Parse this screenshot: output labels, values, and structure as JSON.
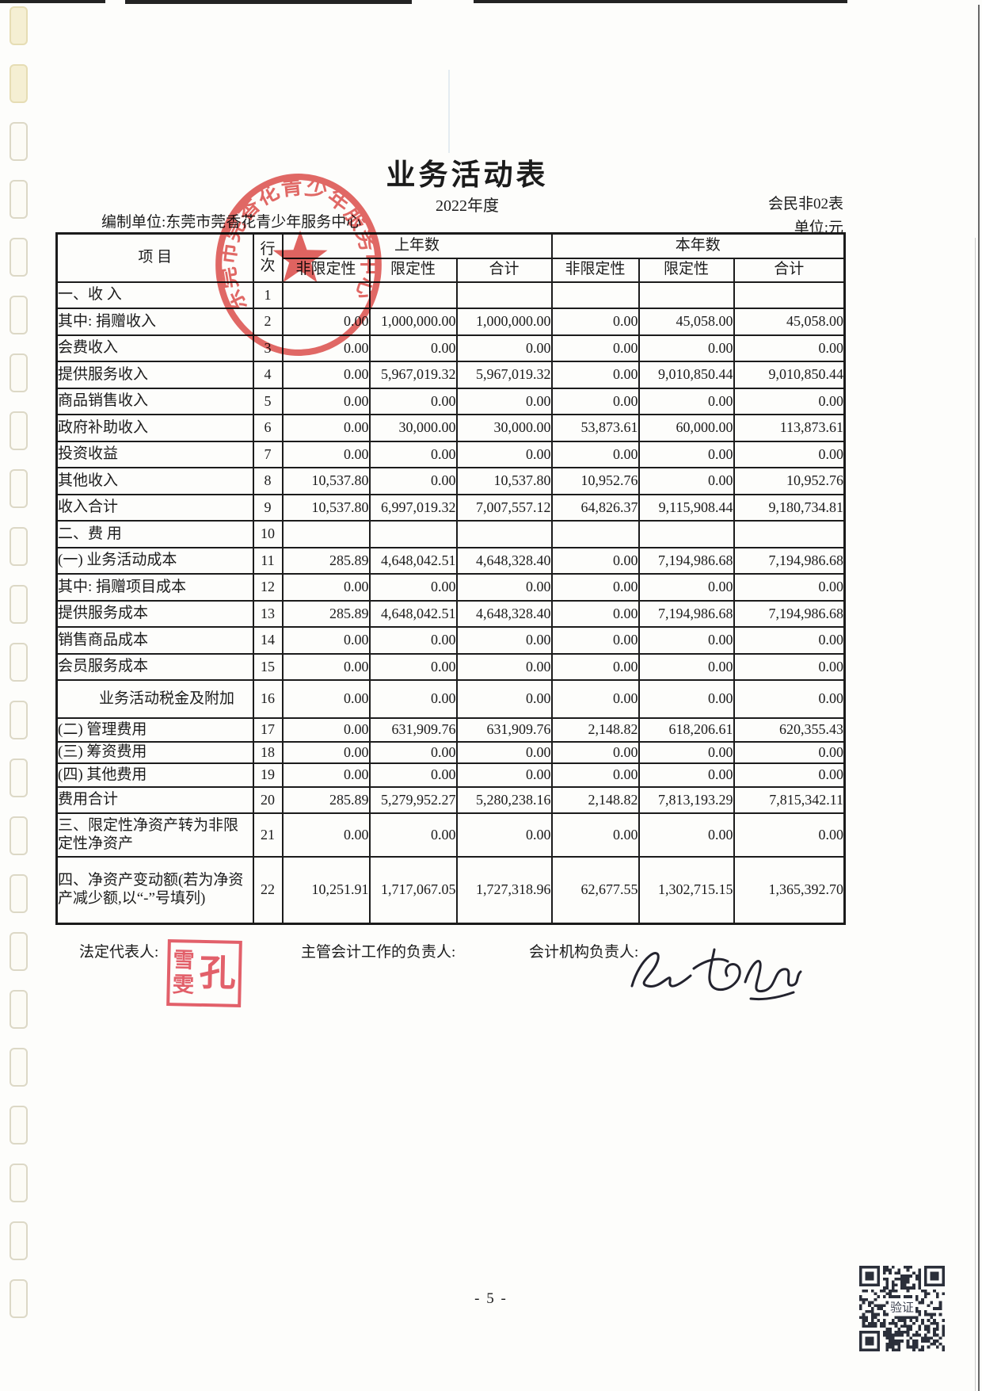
{
  "page": {
    "title": "业务活动表",
    "year": "2022年度",
    "form_code": "会民非02表",
    "unit_label": "单位:元",
    "prepared_by": "编制单位:东莞市莞香花青少年服务中心",
    "page_number": "- 5 -"
  },
  "stamp": {
    "circular_text": "东莞市莞香花青少年服务中心",
    "color": "#dd4f4b"
  },
  "table": {
    "headers": {
      "item": "项  目",
      "line_no": [
        "行",
        "次"
      ],
      "prev_year": "上年数",
      "curr_year": "本年数",
      "sub": [
        "非限定性",
        "限定性",
        "合计",
        "非限定性",
        "限定性",
        "合计"
      ]
    },
    "rows": [
      {
        "item": "一、收 入",
        "no": "1",
        "cls": "lvl0",
        "vals": [
          "",
          "",
          "",
          "",
          "",
          ""
        ]
      },
      {
        "item": "其中: 捐赠收入",
        "no": "2",
        "cls": "lvl0",
        "vals": [
          "0.00",
          "1,000,000.00",
          "1,000,000.00",
          "0.00",
          "45,058.00",
          "45,058.00"
        ]
      },
      {
        "item": "会费收入",
        "no": "3",
        "cls": "lvl1",
        "vals": [
          "0.00",
          "0.00",
          "0.00",
          "0.00",
          "0.00",
          "0.00"
        ]
      },
      {
        "item": "提供服务收入",
        "no": "4",
        "cls": "lvl1",
        "vals": [
          "0.00",
          "5,967,019.32",
          "5,967,019.32",
          "0.00",
          "9,010,850.44",
          "9,010,850.44"
        ]
      },
      {
        "item": "商品销售收入",
        "no": "5",
        "cls": "lvl1",
        "vals": [
          "0.00",
          "0.00",
          "0.00",
          "0.00",
          "0.00",
          "0.00"
        ]
      },
      {
        "item": "政府补助收入",
        "no": "6",
        "cls": "lvl1",
        "vals": [
          "0.00",
          "30,000.00",
          "30,000.00",
          "53,873.61",
          "60,000.00",
          "113,873.61"
        ]
      },
      {
        "item": "投资收益",
        "no": "7",
        "cls": "lvl1",
        "vals": [
          "0.00",
          "0.00",
          "0.00",
          "0.00",
          "0.00",
          "0.00"
        ]
      },
      {
        "item": "其他收入",
        "no": "8",
        "cls": "lvl1",
        "vals": [
          "10,537.80",
          "0.00",
          "10,537.80",
          "10,952.76",
          "0.00",
          "10,952.76"
        ]
      },
      {
        "item": "收入合计",
        "no": "9",
        "cls": "sum",
        "vals": [
          "10,537.80",
          "6,997,019.32",
          "7,007,557.12",
          "64,826.37",
          "9,115,908.44",
          "9,180,734.81"
        ]
      },
      {
        "item": "二、费 用",
        "no": "10",
        "cls": "lvl0",
        "vals": [
          "",
          "",
          "",
          "",
          "",
          ""
        ]
      },
      {
        "item": "(一) 业务活动成本",
        "no": "11",
        "cls": "lvl0a",
        "vals": [
          "285.89",
          "4,648,042.51",
          "4,648,328.40",
          "0.00",
          "7,194,986.68",
          "7,194,986.68"
        ]
      },
      {
        "item": "其中: 捐赠项目成本",
        "no": "12",
        "cls": "lvl0",
        "vals": [
          "0.00",
          "0.00",
          "0.00",
          "0.00",
          "0.00",
          "0.00"
        ]
      },
      {
        "item": "提供服务成本",
        "no": "13",
        "cls": "lvl2",
        "vals": [
          "285.89",
          "4,648,042.51",
          "4,648,328.40",
          "0.00",
          "7,194,986.68",
          "7,194,986.68"
        ]
      },
      {
        "item": "销售商品成本",
        "no": "14",
        "cls": "lvl2",
        "vals": [
          "0.00",
          "0.00",
          "0.00",
          "0.00",
          "0.00",
          "0.00"
        ]
      },
      {
        "item": "会员服务成本",
        "no": "15",
        "cls": "lvl2",
        "vals": [
          "0.00",
          "0.00",
          "0.00",
          "0.00",
          "0.00",
          "0.00"
        ]
      },
      {
        "item": "业务活动税金及附加",
        "no": "16",
        "cls": "hang",
        "vals": [
          "0.00",
          "0.00",
          "0.00",
          "0.00",
          "0.00",
          "0.00"
        ]
      },
      {
        "item": "(二) 管理费用",
        "no": "17",
        "cls": "lvl0a",
        "vals": [
          "0.00",
          "631,909.76",
          "631,909.76",
          "2,148.82",
          "618,206.61",
          "620,355.43"
        ]
      },
      {
        "item": "(三) 筹资费用",
        "no": "18",
        "cls": "lvl0a",
        "vals": [
          "0.00",
          "0.00",
          "0.00",
          "0.00",
          "0.00",
          "0.00"
        ]
      },
      {
        "item": "(四) 其他费用",
        "no": "19",
        "cls": "lvl0a",
        "vals": [
          "0.00",
          "0.00",
          "0.00",
          "0.00",
          "0.00",
          "0.00"
        ]
      },
      {
        "item": "费用合计",
        "no": "20",
        "cls": "sum",
        "vals": [
          "285.89",
          "5,279,952.27",
          "5,280,238.16",
          "2,148.82",
          "7,813,193.29",
          "7,815,342.11"
        ]
      },
      {
        "item": "三、限定性净资产转为非限定性净资产",
        "no": "21",
        "cls": "lvl0",
        "vals": [
          "0.00",
          "0.00",
          "0.00",
          "0.00",
          "0.00",
          "0.00"
        ]
      },
      {
        "item": "四、净资产变动额(若为净资产减少额,以“-”号填列)",
        "no": "22",
        "cls": "lvl0",
        "vals": [
          "10,251.91",
          "1,717,067.05",
          "1,727,318.96",
          "62,677.55",
          "1,302,715.15",
          "1,365,392.70"
        ]
      }
    ]
  },
  "footer": {
    "legal_rep_label": "法定代表人:",
    "accounting_head_label": "主管会计工作的负责人:",
    "accounting_org_label": "会计机构负责人:",
    "seal": {
      "right": "孔",
      "left_top": "雪",
      "left_bottom": "雯"
    }
  },
  "qr": {
    "center_label": "验证"
  }
}
